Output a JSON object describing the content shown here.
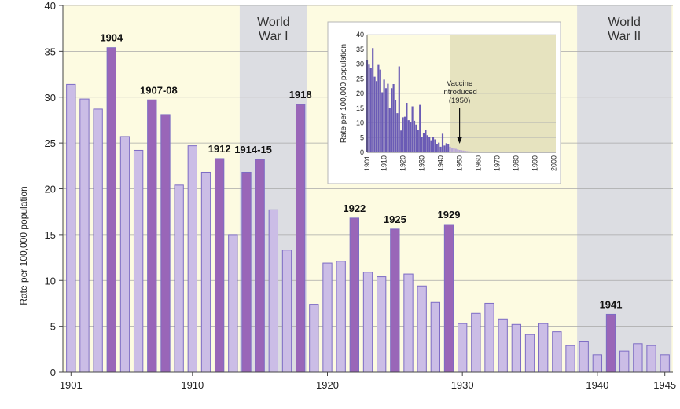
{
  "chart_data": [
    {
      "type": "bar",
      "ylabel": "Rate per 100,000 population",
      "ylim": [
        0,
        40
      ],
      "yticks": [
        0,
        5,
        10,
        15,
        20,
        25,
        30,
        35,
        40
      ],
      "xticks": [
        "1901",
        "1910",
        "1920",
        "1930",
        "1940",
        "1945"
      ],
      "grid": "horizontal",
      "colors": {
        "bar": "#cbbde6",
        "bar_highlight": "#9966b8",
        "bar_edge": "#7d6cc4",
        "bg_peace": "#fdfbe1",
        "bg_war": "#dcdde2",
        "gridline": "#a8a8a8"
      },
      "periods": [
        {
          "name": "World War I",
          "lines": [
            "World",
            "War I"
          ],
          "start": 1914,
          "end": 1918
        },
        {
          "name": "World War II",
          "lines": [
            "World",
            "War II"
          ],
          "start": 1939,
          "end": 1945
        }
      ],
      "years": [
        1901,
        1902,
        1903,
        1904,
        1905,
        1906,
        1907,
        1908,
        1909,
        1910,
        1911,
        1912,
        1913,
        1914,
        1915,
        1916,
        1917,
        1918,
        1919,
        1920,
        1921,
        1922,
        1923,
        1924,
        1925,
        1926,
        1927,
        1928,
        1929,
        1930,
        1931,
        1932,
        1933,
        1934,
        1935,
        1936,
        1937,
        1938,
        1939,
        1940,
        1941,
        1942,
        1943,
        1944,
        1945
      ],
      "values": [
        31.4,
        29.8,
        28.7,
        35.4,
        25.7,
        24.2,
        29.7,
        28.1,
        20.4,
        24.7,
        21.8,
        23.3,
        15.0,
        21.8,
        23.2,
        17.7,
        13.3,
        29.2,
        7.4,
        11.9,
        12.1,
        16.8,
        10.9,
        10.4,
        15.6,
        10.7,
        9.4,
        7.6,
        16.1,
        5.3,
        6.4,
        7.5,
        5.8,
        5.2,
        4.1,
        5.3,
        4.4,
        2.9,
        3.3,
        1.9,
        6.3,
        2.3,
        3.1,
        2.9,
        1.9
      ],
      "highlight_years": [
        1904,
        1907,
        1908,
        1912,
        1914,
        1915,
        1918,
        1922,
        1925,
        1929,
        1941
      ],
      "annotations": [
        {
          "label": "1904",
          "year": 1904,
          "value": 35.4
        },
        {
          "label": "1907-08",
          "year": 1907.5,
          "value": 29.7
        },
        {
          "label": "1912",
          "year": 1912,
          "value": 23.3
        },
        {
          "label": "1914-15",
          "year": 1914.5,
          "value": 23.2
        },
        {
          "label": "1918",
          "year": 1918,
          "value": 29.2
        },
        {
          "label": "1922",
          "year": 1922,
          "value": 16.8
        },
        {
          "label": "1925",
          "year": 1925,
          "value": 15.6
        },
        {
          "label": "1929",
          "year": 1929,
          "value": 16.1
        },
        {
          "label": "1941",
          "year": 1941,
          "value": 6.3
        }
      ]
    },
    {
      "type": "bar",
      "position": "inset",
      "ylabel": "Rate per 100,000 population",
      "ylim": [
        0,
        40
      ],
      "yticks": [
        0,
        5,
        10,
        15,
        20,
        25,
        30,
        35,
        40
      ],
      "xticks": [
        "1901",
        "1910",
        "1920",
        "1930",
        "1940",
        "1950",
        "1960",
        "1970",
        "1980",
        "1990",
        "2000"
      ],
      "xlim": [
        1901,
        2001
      ],
      "colors": {
        "bar_pre": "#6a5bb5",
        "bar_post": "#b9a7d6",
        "bg_pre": "#fdfbe1",
        "bg_post": "#e6e3bf",
        "gridline": "#b0b0b0"
      },
      "shade_start": 1945,
      "years": [
        1901,
        1902,
        1903,
        1904,
        1905,
        1906,
        1907,
        1908,
        1909,
        1910,
        1911,
        1912,
        1913,
        1914,
        1915,
        1916,
        1917,
        1918,
        1919,
        1920,
        1921,
        1922,
        1923,
        1924,
        1925,
        1926,
        1927,
        1928,
        1929,
        1930,
        1931,
        1932,
        1933,
        1934,
        1935,
        1936,
        1937,
        1938,
        1939,
        1940,
        1941,
        1942,
        1943,
        1944,
        1945,
        1946,
        1947,
        1948,
        1949,
        1950,
        1951,
        1952,
        1953,
        1954,
        1955,
        1956,
        1957,
        1958,
        1959,
        1960,
        1961,
        1962,
        1963,
        1964,
        1965,
        1966,
        1967,
        1968,
        1969,
        1970,
        1971,
        1972,
        1973,
        1974,
        1975,
        1976,
        1977,
        1978,
        1979,
        1980,
        1981,
        1982,
        1983,
        1984,
        1985,
        1986,
        1987,
        1988,
        1989,
        1990,
        1991,
        1992,
        1993,
        1994,
        1995,
        1996,
        1997,
        1998,
        1999,
        2000
      ],
      "values": [
        31.4,
        29.8,
        28.7,
        35.4,
        25.7,
        24.2,
        29.7,
        28.1,
        20.4,
        24.7,
        21.8,
        23.3,
        15.0,
        21.8,
        23.2,
        17.7,
        13.3,
        29.2,
        7.4,
        11.9,
        12.1,
        16.8,
        10.9,
        10.4,
        15.6,
        10.7,
        9.4,
        7.6,
        16.1,
        5.3,
        6.4,
        7.5,
        5.8,
        5.2,
        4.1,
        5.3,
        4.4,
        2.9,
        3.3,
        1.9,
        6.3,
        2.3,
        3.1,
        2.9,
        1.9,
        1.6,
        1.4,
        1.2,
        1.0,
        0.8,
        0.7,
        0.6,
        0.5,
        0.4,
        0.35,
        0.3,
        0.25,
        0.2,
        0.15,
        0.12,
        0.1,
        0.08,
        0.06,
        0.05,
        0.04,
        0.03,
        0.03,
        0.02,
        0.02,
        0.01,
        0.01,
        0.01,
        0.01,
        0.01,
        0.01,
        0.01,
        0.01,
        0.01,
        0.01,
        0.01,
        0.01,
        0.01,
        0.01,
        0.01,
        0.01,
        0.01,
        0.01,
        0.01,
        0.01,
        0.01,
        0.01,
        0.01,
        0.01,
        0.01,
        0.01,
        0.01,
        0.01,
        0.01,
        0.01,
        0.01
      ],
      "annotations": [
        {
          "label": "Vaccine introduced (1950)",
          "lines": [
            "Vaccine",
            "introduced",
            "(1950)"
          ],
          "year": 1950,
          "value": 1
        }
      ]
    }
  ]
}
